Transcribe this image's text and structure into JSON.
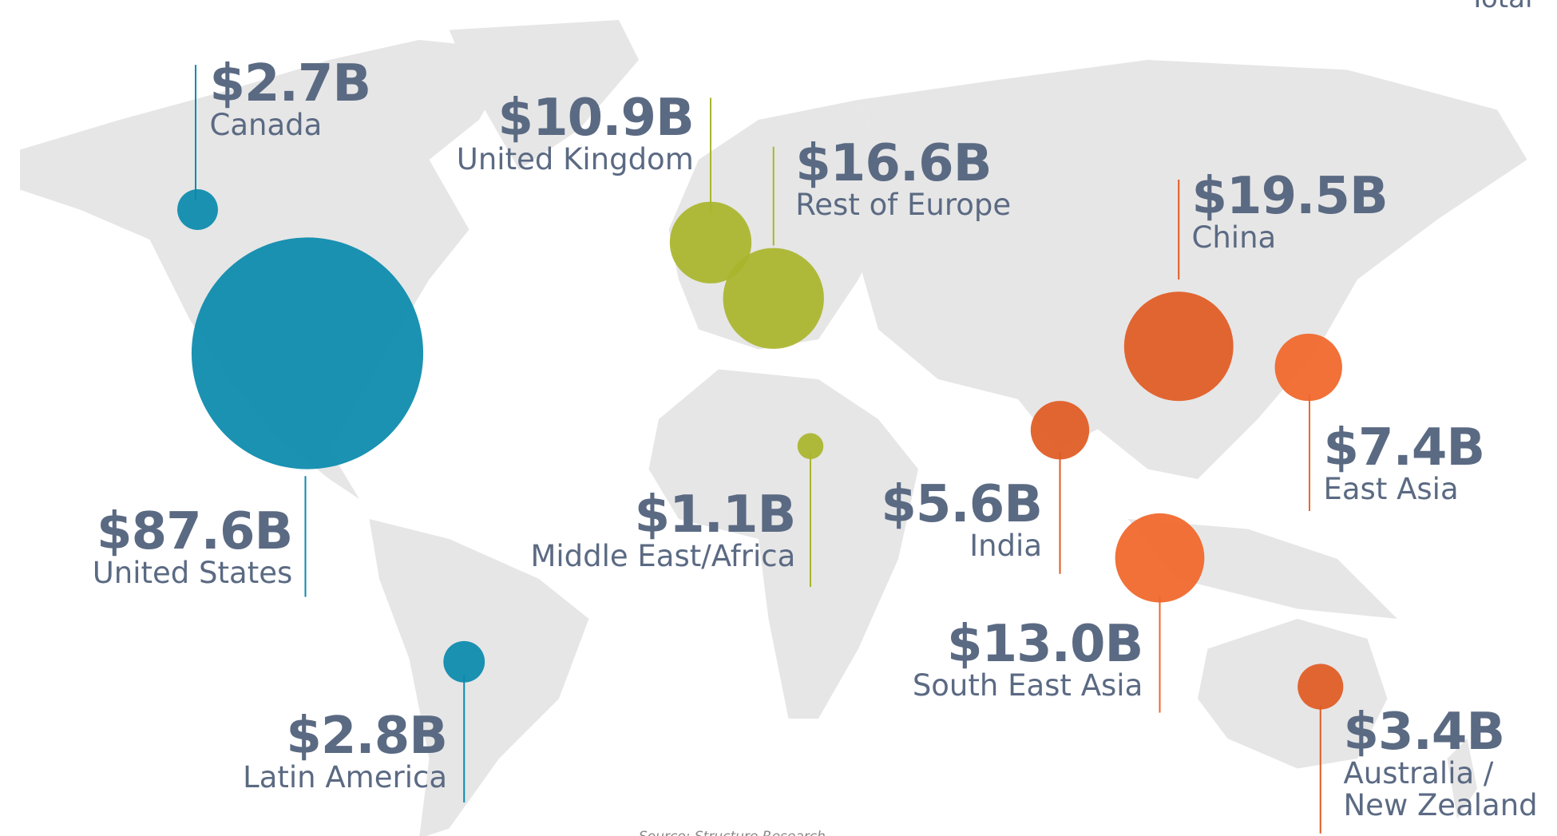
{
  "chart_data": {
    "type": "bubble-map",
    "title": "Total",
    "source": "Source: Structure Research",
    "categories": [
      "Canada",
      "United States",
      "Latin America",
      "United Kingdom",
      "Rest of Europe",
      "Middle East/Africa",
      "China",
      "East Asia",
      "India",
      "South East Asia",
      "Australia /\nNew Zealand"
    ],
    "values": [
      2.7,
      87.6,
      2.8,
      10.9,
      16.6,
      1.1,
      19.5,
      7.4,
      5.6,
      13.0,
      3.4
    ],
    "value_labels": [
      "$2.7B",
      "$87.6B",
      "$2.8B",
      "$10.9B",
      "$16.6B",
      "$1.1B",
      "$19.5B",
      "$7.4B",
      "$5.6B",
      "$13.0B",
      "$3.4B"
    ],
    "colors": [
      "#0a8aac",
      "#0a8aac",
      "#0a8aac",
      "#a9b52c",
      "#a9b52c",
      "#a9b52c",
      "#e05a22",
      "#f0662a",
      "#e05a22",
      "#f0662a",
      "#e05a22"
    ]
  }
}
